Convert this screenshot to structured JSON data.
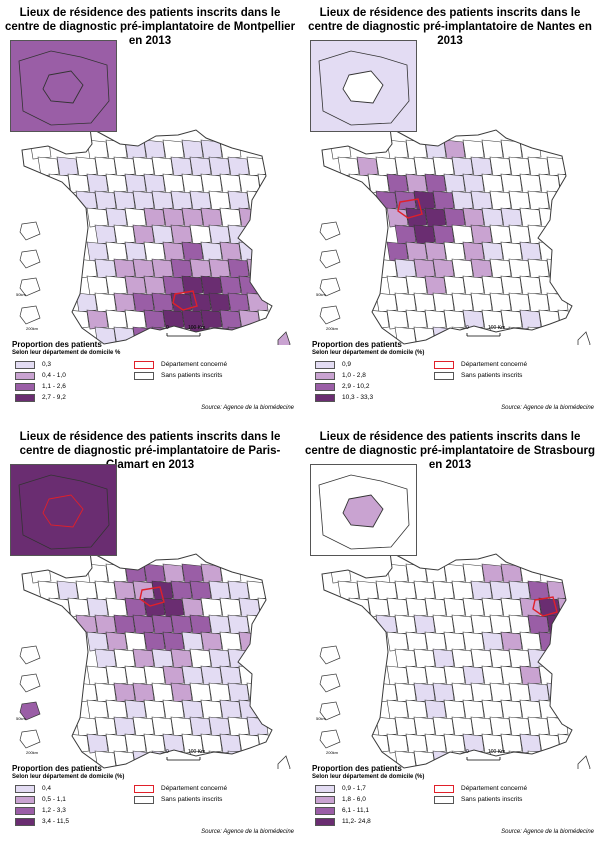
{
  "colors": {
    "c1": "#e3dcf3",
    "c2": "#c9a3d1",
    "c3": "#9a5ea6",
    "c4": "#6a2d71",
    "none": "#ffffff",
    "stroke": "#3a3a3a",
    "highlight": "#e0202a"
  },
  "common": {
    "legend_title": "Proportion des patients",
    "special_dept": "Département concerné",
    "no_patients": "Sans patients inscrits",
    "source": "Source: Agence de la biomédecine",
    "scale_zero": "0",
    "scale_km": "100 Km",
    "inset_km_50": "50km",
    "inset_km_200": "200km"
  },
  "panels": [
    {
      "title": "Lieux de résidence des patients inscrits dans le centre de diagnostic pré-implantatoire de Montpellier en 2013",
      "legend_sub": "Selon leur département de domicile %",
      "classes": [
        "0,3",
        "0,4 - 1,0",
        "1,1 - 2,6",
        "2,7 - 9,2"
      ],
      "inset_fill": "c3",
      "focus_region": "south",
      "focus_name": "Montpellier"
    },
    {
      "title": "Lieux de résidence des patients inscrits dans le centre de diagnostic pré-implantatoire de Nantes en 2013",
      "legend_sub": "Selon leur département de domicile (%)",
      "classes": [
        "0,9",
        "1,0 - 2,8",
        "2,9 - 10,2",
        "10,3 - 33,3"
      ],
      "inset_fill": "c1",
      "focus_region": "west",
      "focus_name": "Nantes"
    },
    {
      "title": "Lieux de résidence des patients inscrits dans le centre de diagnostic pré-implantatoire de Paris-Clamart en 2013",
      "legend_sub": "Selon leur département de domicile (%)",
      "classes": [
        "0,4",
        "0,5 - 1,1",
        "1,2 - 3,3",
        "3,4 - 11,5"
      ],
      "inset_fill": "c4",
      "focus_region": "paris",
      "focus_name": "Paris-Clamart"
    },
    {
      "title": "Lieux de résidence des patients inscrits dans le centre de diagnostic pré-implantatoire de Strasbourg en 2013",
      "legend_sub": "Selon leur département de domicile (%)",
      "classes": [
        "0,9 - 1,7",
        "1,8 - 6,0",
        "6,1 - 11,1",
        "11,2- 24,8"
      ],
      "inset_fill": "none",
      "focus_region": "east",
      "focus_name": "Strasbourg"
    }
  ]
}
